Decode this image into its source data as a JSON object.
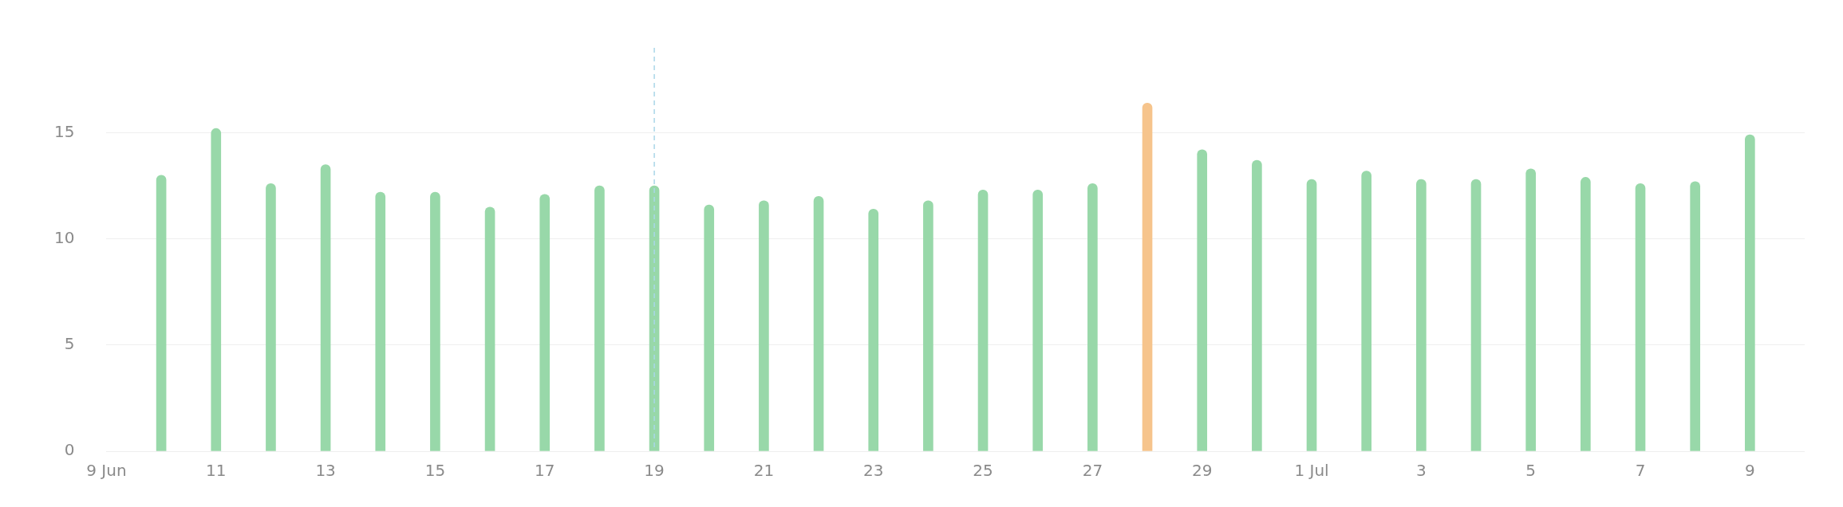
{
  "chart_data": {
    "type": "bar",
    "x": [
      "--06-10",
      "--06-11",
      "--06-12",
      "--06-13",
      "--06-14",
      "--06-15",
      "--06-16",
      "--06-17",
      "--06-18",
      "--06-19",
      "--06-20",
      "--06-21",
      "--06-22",
      "--06-23",
      "--06-24",
      "--06-25",
      "--06-26",
      "--06-27",
      "--06-28",
      "--06-29",
      "--06-30",
      "--07-01",
      "--07-02",
      "--07-03",
      "--07-04",
      "--07-05",
      "--07-06",
      "--07-07",
      "--07-08",
      "--07-09"
    ],
    "values": [
      13.0,
      15.2,
      12.6,
      13.5,
      12.2,
      12.2,
      11.5,
      12.1,
      12.5,
      12.5,
      11.6,
      11.8,
      12.0,
      11.4,
      11.8,
      12.3,
      12.3,
      12.6,
      16.4,
      14.2,
      13.7,
      12.8,
      13.2,
      12.8,
      12.8,
      13.3,
      12.9,
      12.6,
      12.7,
      14.9
    ],
    "colors": [
      "#98d8a9",
      "#98d8a9",
      "#98d8a9",
      "#98d8a9",
      "#98d8a9",
      "#98d8a9",
      "#98d8a9",
      "#98d8a9",
      "#98d8a9",
      "#98d8a9",
      "#98d8a9",
      "#98d8a9",
      "#98d8a9",
      "#98d8a9",
      "#98d8a9",
      "#98d8a9",
      "#98d8a9",
      "#98d8a9",
      "#f6c48c",
      "#98d8a9",
      "#98d8a9",
      "#98d8a9",
      "#98d8a9",
      "#98d8a9",
      "#98d8a9",
      "#98d8a9",
      "#98d8a9",
      "#98d8a9",
      "#98d8a9",
      "#98d8a9"
    ],
    "xlim": [
      "--06-09",
      "--07-10"
    ],
    "xticks": [
      {
        "value": "--06-09",
        "label": "9 Jun"
      },
      {
        "value": "--06-11",
        "label": "11"
      },
      {
        "value": "--06-13",
        "label": "13"
      },
      {
        "value": "--06-15",
        "label": "15"
      },
      {
        "value": "--06-17",
        "label": "17"
      },
      {
        "value": "--06-19",
        "label": "19"
      },
      {
        "value": "--06-21",
        "label": "21"
      },
      {
        "value": "--06-23",
        "label": "23"
      },
      {
        "value": "--06-25",
        "label": "25"
      },
      {
        "value": "--06-27",
        "label": "27"
      },
      {
        "value": "--06-29",
        "label": "29"
      },
      {
        "value": "--07-01",
        "label": "1 Jul"
      },
      {
        "value": "--07-03",
        "label": "3"
      },
      {
        "value": "--07-05",
        "label": "5"
      },
      {
        "value": "--07-07",
        "label": "7"
      },
      {
        "value": "--07-09",
        "label": "9"
      }
    ],
    "ylim": [
      0,
      19
    ],
    "yticks": [
      0,
      5,
      10,
      15
    ],
    "grid": "y",
    "legend": false,
    "ref_lines": [
      {
        "axis": "x",
        "value": "--06-19",
        "color": "#a9d6e8",
        "line_style": "dashed"
      }
    ]
  }
}
